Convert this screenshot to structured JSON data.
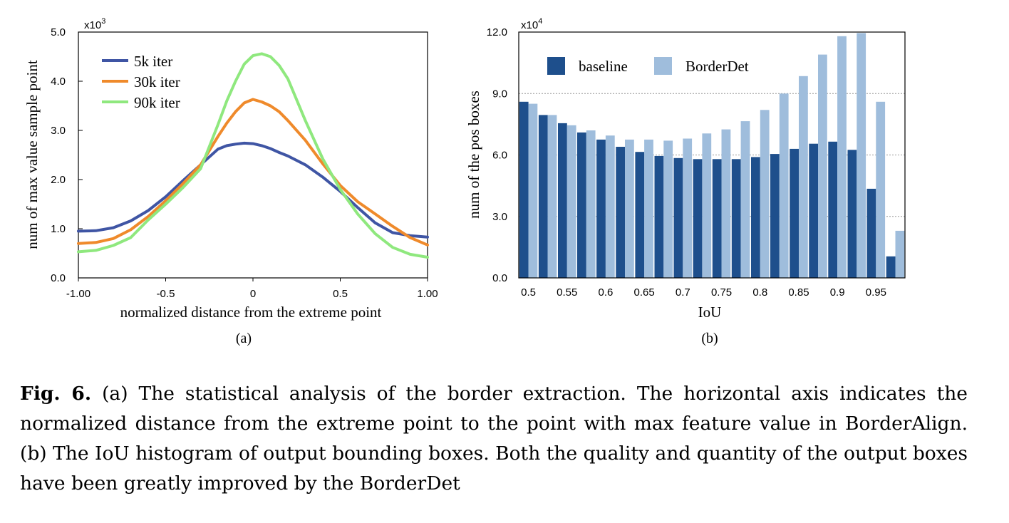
{
  "chart_data": [
    {
      "type": "line",
      "xlabel": "normalized distance from the extreme point",
      "ylabel": "num of  max value sample point",
      "y_multiplier": "x10",
      "y_multiplier_exp": "3",
      "xlim": [
        -1.0,
        1.0
      ],
      "ylim": [
        0.0,
        5.0
      ],
      "xticks": [
        "-1.00",
        "-0.5",
        "0",
        "0.5",
        "1.00"
      ],
      "xtick_values": [
        -1.0,
        -0.5,
        0,
        0.5,
        1.0
      ],
      "yticks": [
        "0.0",
        "1.0",
        "2.0",
        "3.0",
        "4.0",
        "5.0"
      ],
      "ytick_values": [
        0,
        1,
        2,
        3,
        4,
        5
      ],
      "grid": false,
      "legend_position": "top-left",
      "subplot_label": "(a)",
      "x": [
        -1.0,
        -0.9,
        -0.8,
        -0.7,
        -0.6,
        -0.5,
        -0.4,
        -0.3,
        -0.2,
        -0.15,
        -0.1,
        -0.05,
        0.0,
        0.05,
        0.1,
        0.15,
        0.2,
        0.3,
        0.4,
        0.5,
        0.6,
        0.7,
        0.8,
        0.9,
        1.0
      ],
      "series": [
        {
          "name": "5k iter",
          "color": "#3f55a4",
          "values": [
            0.95,
            0.96,
            1.02,
            1.16,
            1.37,
            1.65,
            1.98,
            2.3,
            2.62,
            2.69,
            2.72,
            2.74,
            2.73,
            2.69,
            2.63,
            2.55,
            2.48,
            2.3,
            2.05,
            1.76,
            1.43,
            1.12,
            0.92,
            0.86,
            0.83
          ]
        },
        {
          "name": "30k iter",
          "color": "#ef8a2b",
          "values": [
            0.7,
            0.72,
            0.8,
            0.98,
            1.25,
            1.57,
            1.92,
            2.3,
            2.88,
            3.15,
            3.38,
            3.56,
            3.63,
            3.58,
            3.5,
            3.38,
            3.2,
            2.8,
            2.32,
            1.88,
            1.55,
            1.3,
            1.05,
            0.82,
            0.67
          ]
        },
        {
          "name": "90k iter",
          "color": "#8fe87e",
          "values": [
            0.53,
            0.56,
            0.66,
            0.82,
            1.18,
            1.5,
            1.84,
            2.22,
            3.12,
            3.6,
            4.0,
            4.35,
            4.52,
            4.56,
            4.5,
            4.32,
            4.05,
            3.2,
            2.42,
            1.8,
            1.3,
            0.9,
            0.62,
            0.48,
            0.42
          ]
        }
      ]
    },
    {
      "type": "bar",
      "xlabel": "IoU",
      "ylabel": "num of the pos boxes",
      "y_multiplier": "x10",
      "y_multiplier_exp": "4",
      "ylim": [
        0.0,
        12.0
      ],
      "yticks": [
        "0.0",
        "3.0",
        "6.0",
        "9.0",
        "12.0"
      ],
      "ytick_values": [
        0,
        3,
        6,
        9,
        12
      ],
      "grid": true,
      "legend_position": "top-left",
      "subplot_label": "(b)",
      "categories": [
        "0.5",
        "0.525",
        "0.55",
        "0.575",
        "0.6",
        "0.625",
        "0.65",
        "0.675",
        "0.7",
        "0.725",
        "0.75",
        "0.775",
        "0.8",
        "0.825",
        "0.85",
        "0.875",
        "0.9",
        "0.925",
        "0.95",
        "0.975"
      ],
      "tick_labels": [
        "0.5",
        "0.55",
        "0.6",
        "0.65",
        "0.7",
        "0.75",
        "0.8",
        "0.85",
        "0.9",
        "0.95"
      ],
      "series": [
        {
          "name": "baseline",
          "color": "#1e4f8c",
          "values": [
            8.6,
            7.95,
            7.55,
            7.1,
            6.75,
            6.4,
            6.15,
            5.95,
            5.85,
            5.8,
            5.8,
            5.8,
            5.9,
            6.05,
            6.3,
            6.55,
            6.65,
            6.25,
            4.35,
            1.05
          ]
        },
        {
          "name": "BorderDet",
          "color": "#9fbddc",
          "values": [
            8.5,
            7.95,
            7.45,
            7.2,
            6.95,
            6.75,
            6.75,
            6.7,
            6.8,
            7.05,
            7.25,
            7.65,
            8.2,
            9.0,
            9.85,
            10.9,
            11.8,
            11.95,
            8.6,
            2.3
          ]
        }
      ]
    }
  ],
  "caption": {
    "label": "Fig. 6.",
    "text": " (a) The statistical analysis of the border extraction. The horizontal axis indicates the normalized distance from the extreme point to the point with max feature value in BorderAlign. (b) The IoU histogram of output bounding boxes. Both the quality and quantity of the output boxes have been greatly improved by the BorderDet"
  }
}
